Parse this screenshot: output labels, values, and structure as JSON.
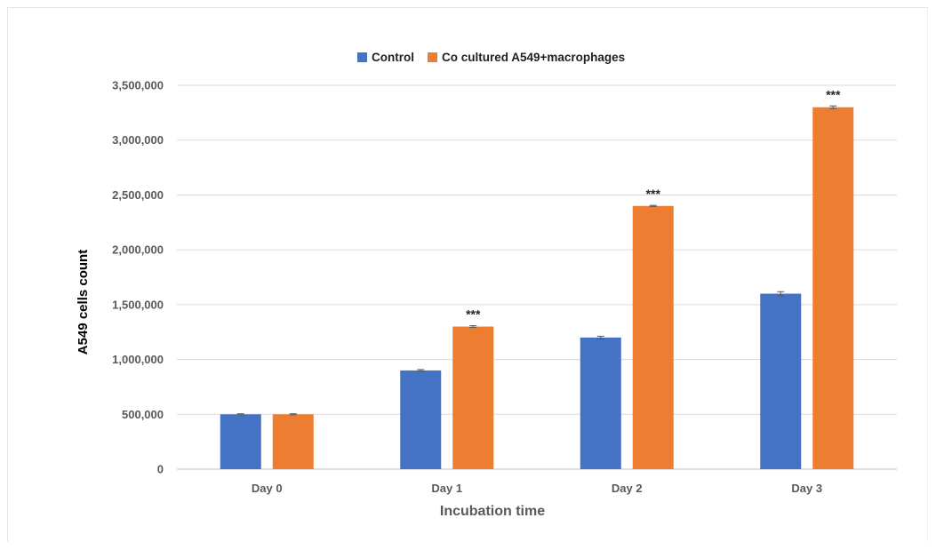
{
  "chart_data": {
    "type": "bar",
    "title": "",
    "xlabel": "Incubation time",
    "ylabel": "A549 cells count",
    "categories": [
      "Day 0",
      "Day 1",
      "Day 2",
      "Day 3"
    ],
    "ylim": [
      0,
      3500000
    ],
    "yticks": [
      0,
      500000,
      1000000,
      1500000,
      2000000,
      2500000,
      3000000,
      3500000
    ],
    "ytick_labels": [
      "0",
      "500,000",
      "1,000,000",
      "1,500,000",
      "2,000,000",
      "2,500,000",
      "3,000,000",
      "3,500,000"
    ],
    "grid": true,
    "legend_position": "top-center",
    "series": [
      {
        "name": "Control",
        "color": "#4472c4",
        "values": [
          500000,
          900000,
          1200000,
          1600000
        ],
        "errors": [
          5000,
          8000,
          12000,
          18000
        ],
        "annotations": [
          "",
          "",
          "",
          ""
        ]
      },
      {
        "name": "Co cultured A549+macrophages",
        "color": "#ed7d31",
        "values": [
          500000,
          1300000,
          2400000,
          3300000
        ],
        "errors": [
          5000,
          8000,
          5000,
          12000
        ],
        "annotations": [
          "",
          "***",
          "***",
          "***"
        ]
      }
    ]
  }
}
